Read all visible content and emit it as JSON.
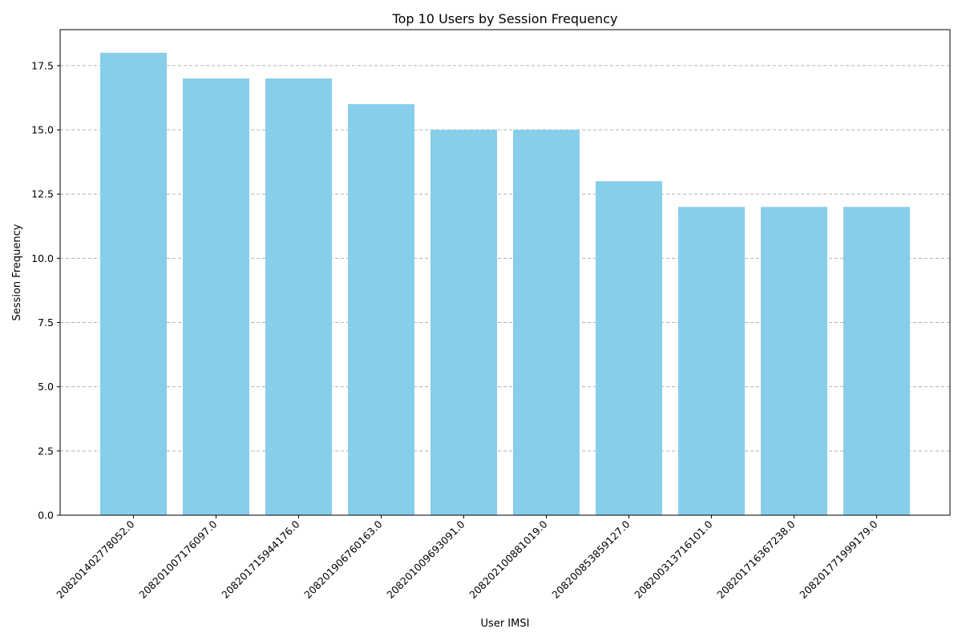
{
  "chart_data": {
    "type": "bar",
    "title": "Top 10 Users by Session Frequency",
    "xlabel": "User IMSI",
    "ylabel": "Session Frequency",
    "categories": [
      "208201402778052.0",
      "208201007176097.0",
      "208201715944176.0",
      "208201906760163.0",
      "208201009693091.0",
      "208202100881019.0",
      "208200853859127.0",
      "208200313716101.0",
      "208201716367238.0",
      "208201771999179.0"
    ],
    "values": [
      18,
      17,
      17,
      16,
      15,
      15,
      13,
      12,
      12,
      12
    ],
    "ylim": [
      0,
      18.9
    ],
    "yticks": [
      "0.0",
      "2.5",
      "5.0",
      "7.5",
      "10.0",
      "12.5",
      "15.0",
      "17.5"
    ],
    "ytick_values": [
      0,
      2.5,
      5,
      7.5,
      10,
      12.5,
      15,
      17.5
    ],
    "grid": "y-dashed",
    "bar_color": "#87CEEB"
  }
}
